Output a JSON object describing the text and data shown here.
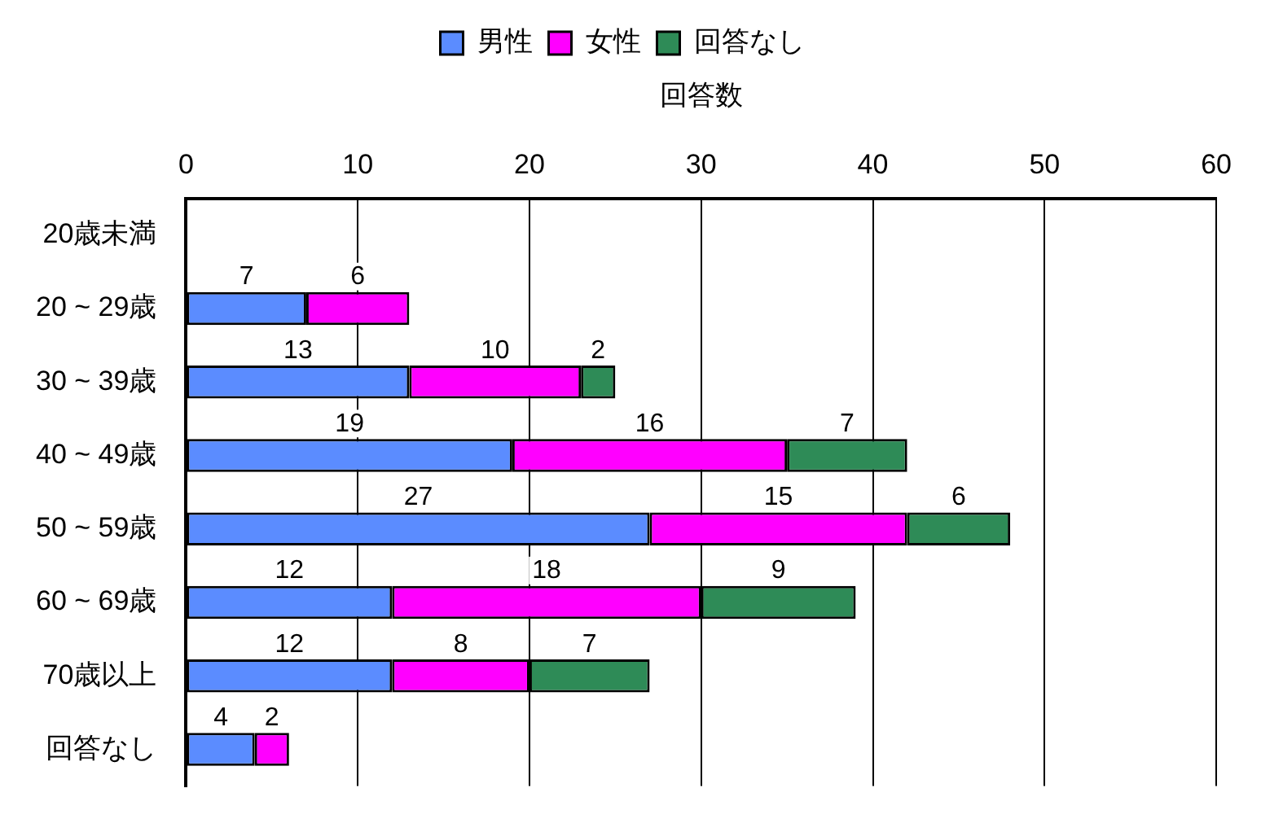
{
  "chart_data": {
    "type": "bar",
    "orientation": "horizontal",
    "stacked": true,
    "xlabel": "回答数",
    "categories": [
      "20歳未満",
      "20 ~ 29歳",
      "30 ~ 39歳",
      "40 ~ 49歳",
      "50 ~ 59歳",
      "60 ~ 69歳",
      "70歳以上",
      "回答なし"
    ],
    "series": [
      {
        "name": "男性",
        "color": "#5b8cff",
        "values": [
          null,
          7,
          13,
          19,
          27,
          12,
          12,
          4
        ]
      },
      {
        "name": "女性",
        "color": "#ff00ff",
        "values": [
          null,
          6,
          10,
          16,
          15,
          18,
          8,
          2
        ]
      },
      {
        "name": "回答なし",
        "color": "#2e8b57",
        "values": [
          null,
          null,
          2,
          7,
          6,
          9,
          7,
          null
        ]
      }
    ],
    "xlim": [
      0,
      60
    ],
    "xticks": [
      0,
      10,
      20,
      30,
      40,
      50,
      60
    ],
    "grid": "x",
    "legend": "top",
    "data_labels": true
  }
}
